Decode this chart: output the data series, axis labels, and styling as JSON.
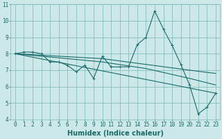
{
  "xlabel": "Humidex (Indice chaleur)",
  "bg_color": "#cce8e8",
  "grid_color": "#7ab8b8",
  "line_color": "#1a6b6b",
  "xlim": [
    -0.5,
    23.5
  ],
  "ylim": [
    4,
    11
  ],
  "xticks": [
    0,
    1,
    2,
    3,
    4,
    5,
    6,
    7,
    8,
    9,
    10,
    11,
    12,
    13,
    14,
    15,
    16,
    17,
    18,
    19,
    20,
    21,
    22,
    23
  ],
  "yticks": [
    4,
    5,
    6,
    7,
    8,
    9,
    10,
    11
  ],
  "series": [
    [
      0,
      8.0
    ],
    [
      1,
      8.1
    ],
    [
      2,
      8.1
    ],
    [
      3,
      8.0
    ],
    [
      4,
      7.5
    ],
    [
      5,
      7.5
    ],
    [
      6,
      7.3
    ],
    [
      7,
      6.9
    ],
    [
      8,
      7.3
    ],
    [
      9,
      6.5
    ],
    [
      10,
      7.85
    ],
    [
      11,
      7.2
    ],
    [
      12,
      7.2
    ],
    [
      13,
      7.2
    ],
    [
      14,
      8.55
    ],
    [
      15,
      9.0
    ],
    [
      16,
      10.6
    ],
    [
      17,
      9.5
    ],
    [
      18,
      8.5
    ],
    [
      19,
      7.35
    ],
    [
      20,
      6.1
    ],
    [
      21,
      4.35
    ],
    [
      22,
      4.75
    ],
    [
      23,
      5.6
    ]
  ],
  "trend_line": [
    [
      0,
      8.0
    ],
    [
      23,
      5.6
    ]
  ],
  "smooth_line": [
    [
      0,
      8.0
    ],
    [
      5,
      7.75
    ],
    [
      10,
      7.5
    ],
    [
      15,
      7.1
    ],
    [
      20,
      6.5
    ],
    [
      23,
      6.1
    ]
  ],
  "flat_line": [
    [
      0,
      8.0
    ],
    [
      10,
      7.7
    ],
    [
      20,
      7.0
    ],
    [
      23,
      6.8
    ]
  ],
  "marker": "+",
  "marker_size": 3,
  "linewidth": 0.8,
  "xlabel_fontsize": 7,
  "tick_fontsize": 5.5
}
